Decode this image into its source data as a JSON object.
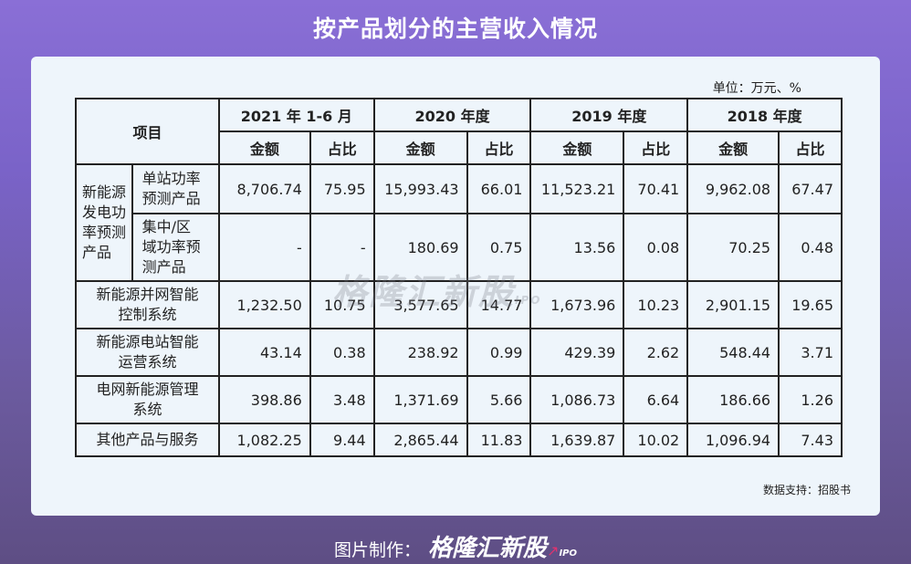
{
  "title": "按产品划分的主营收入情况",
  "unit": "单位：万元、%",
  "source": "数据支持：招股书",
  "watermark": {
    "brand": "格隆汇新股",
    "sub": "IPO"
  },
  "footer": {
    "label": "图片制作：",
    "brand": "格隆汇新股",
    "sub": "IPO"
  },
  "table": {
    "header_item": "项目",
    "periods": [
      "2021 年 1-6 月",
      "2020 年度",
      "2019 年度",
      "2018 年度"
    ],
    "sub_amount": "金额",
    "sub_ratio": "占比",
    "group_label": "新能源发电功率预测产品",
    "group_label_lines": [
      "新能源",
      "发电功",
      "率预测",
      "产品"
    ],
    "rows": [
      {
        "name": "单站功率预测产品",
        "name_lines": [
          "单站功率",
          "预测产品"
        ],
        "values": [
          "8,706.74",
          "75.95",
          "15,993.43",
          "66.01",
          "11,523.21",
          "70.41",
          "9,962.08",
          "67.47"
        ]
      },
      {
        "name": "集中/区域功率预测产品",
        "name_lines": [
          "集中/区",
          "域功率预",
          "测产品"
        ],
        "values": [
          "-",
          "-",
          "180.69",
          "0.75",
          "13.56",
          "0.08",
          "70.25",
          "0.48"
        ]
      },
      {
        "name": "新能源并网智能控制系统",
        "name_lines": [
          "新能源并网智能",
          "控制系统"
        ],
        "values": [
          "1,232.50",
          "10.75",
          "3,577.65",
          "14.77",
          "1,673.96",
          "10.23",
          "2,901.15",
          "19.65"
        ]
      },
      {
        "name": "新能源电站智能运营系统",
        "name_lines": [
          "新能源电站智能",
          "运营系统"
        ],
        "values": [
          "43.14",
          "0.38",
          "238.92",
          "0.99",
          "429.39",
          "2.62",
          "548.44",
          "3.71"
        ]
      },
      {
        "name": "电网新能源管理系统",
        "name_lines": [
          "电网新能源管理",
          "系统"
        ],
        "values": [
          "398.86",
          "3.48",
          "1,371.69",
          "5.66",
          "1,086.73",
          "6.64",
          "186.66",
          "1.26"
        ]
      },
      {
        "name": "其他产品与服务",
        "name_lines": [
          "其他产品与服务"
        ],
        "values": [
          "1,082.25",
          "9.44",
          "2,865.44",
          "11.83",
          "1,639.87",
          "10.02",
          "1,096.94",
          "7.43"
        ]
      }
    ]
  }
}
